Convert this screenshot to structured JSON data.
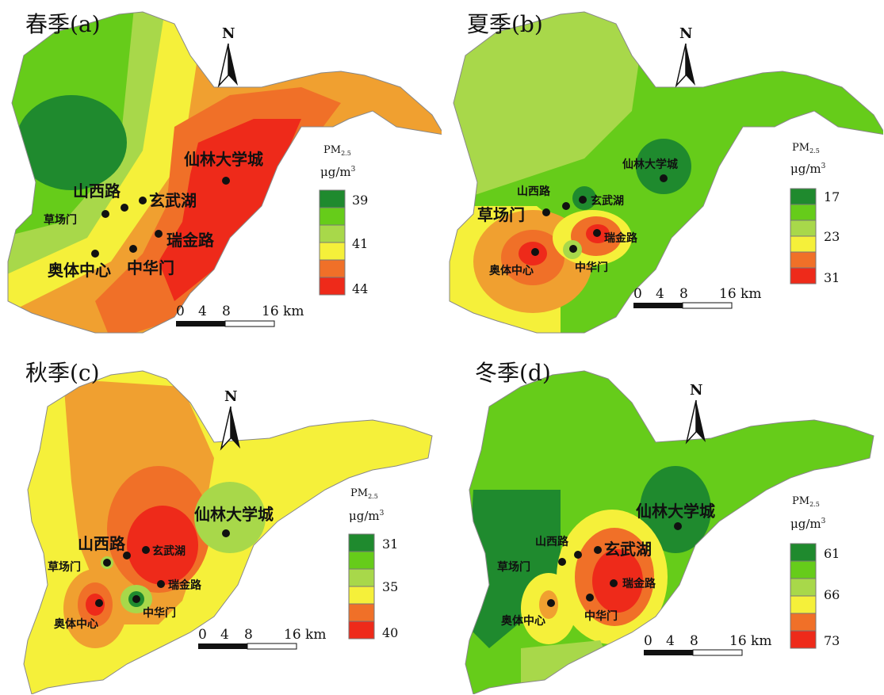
{
  "colors": {
    "dark_green": "#1f8a2e",
    "green": "#66cc1a",
    "light_green": "#a8d84a",
    "yellow": "#f5f03a",
    "orange": "#f0a030",
    "dark_orange": "#f07028",
    "red": "#ee2a1a"
  },
  "scale_labels": [
    "0",
    "4",
    "8",
    "16 km"
  ],
  "north_label": "N",
  "legend_title": "PM",
  "legend_sub": "2.5",
  "legend_unit": "μg/m",
  "legend_unit_sup": "3",
  "panels": [
    {
      "id": "a",
      "title": "春季(a)",
      "legend_values": [
        "39",
        "41",
        "44"
      ],
      "stations": [
        "山西路",
        "玄武湖",
        "草场门",
        "奥体中心",
        "中华门",
        "瑞金路",
        "仙林大学城"
      ]
    },
    {
      "id": "b",
      "title": "夏季(b)",
      "legend_values": [
        "17",
        "23",
        "31"
      ],
      "stations": [
        "山西路",
        "玄武湖",
        "草场门",
        "奥体中心",
        "中华门",
        "瑞金路",
        "仙林大学城"
      ]
    },
    {
      "id": "c",
      "title": "秋季(c)",
      "legend_values": [
        "31",
        "35",
        "40"
      ],
      "stations": [
        "山西路",
        "玄武湖",
        "草场门",
        "奥体中心",
        "中华门",
        "瑞金路",
        "仙林大学城"
      ]
    },
    {
      "id": "d",
      "title": "冬季(d)",
      "legend_values": [
        "61",
        "66",
        "73"
      ],
      "stations": [
        "山西路",
        "玄武湖",
        "草场门",
        "奥体中心",
        "中华门",
        "瑞金路",
        "仙林大学城"
      ]
    }
  ]
}
